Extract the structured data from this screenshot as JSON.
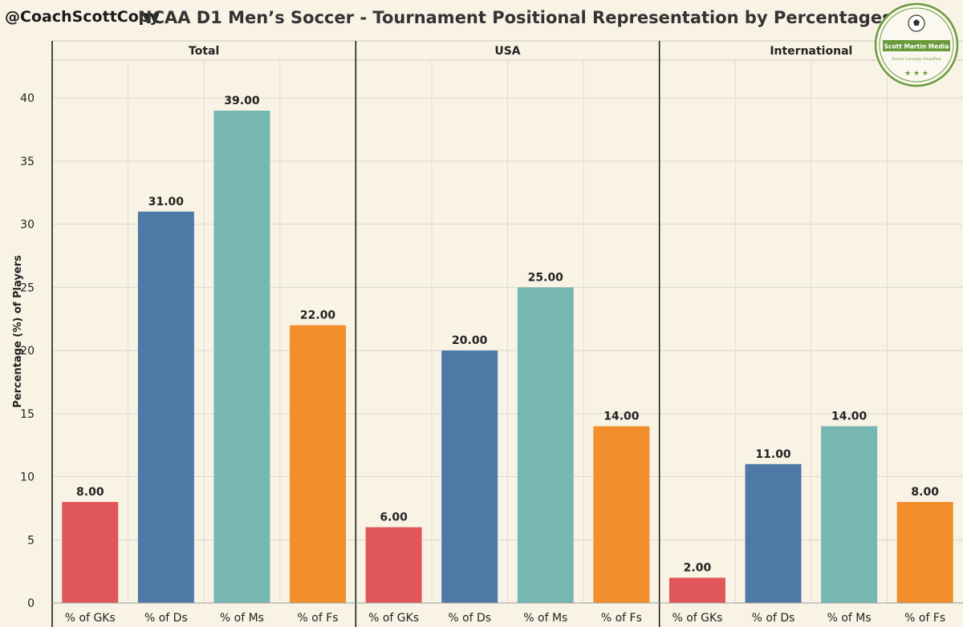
{
  "header": {
    "handle": "@CoachScottCopy",
    "title": "NCAA D1 Men’s Soccer - Tournament Positional Representation by Percentages"
  },
  "logo": {
    "name": "Scott Martin Media",
    "tagline": "Soccer Concepts Simplified",
    "stars": "★ ★ ★",
    "color": "#6a9a3c"
  },
  "chart_data": {
    "type": "bar",
    "ylabel": "Percentage (%) of Players",
    "ylim": [
      0,
      43
    ],
    "yticks": [
      0,
      5,
      10,
      15,
      20,
      25,
      30,
      35,
      40
    ],
    "grid": true,
    "categories": [
      "% of GKs",
      "% of Ds",
      "% of Ms",
      "% of Fs"
    ],
    "colors": [
      "#e15759",
      "#4e79a7",
      "#76b7b2",
      "#f28e2b"
    ],
    "panels": [
      {
        "name": "Total",
        "values": [
          8.0,
          31.0,
          39.0,
          22.0
        ]
      },
      {
        "name": "USA",
        "values": [
          6.0,
          20.0,
          25.0,
          14.0
        ]
      },
      {
        "name": "International",
        "values": [
          2.0,
          11.0,
          14.0,
          8.0
        ]
      }
    ]
  }
}
